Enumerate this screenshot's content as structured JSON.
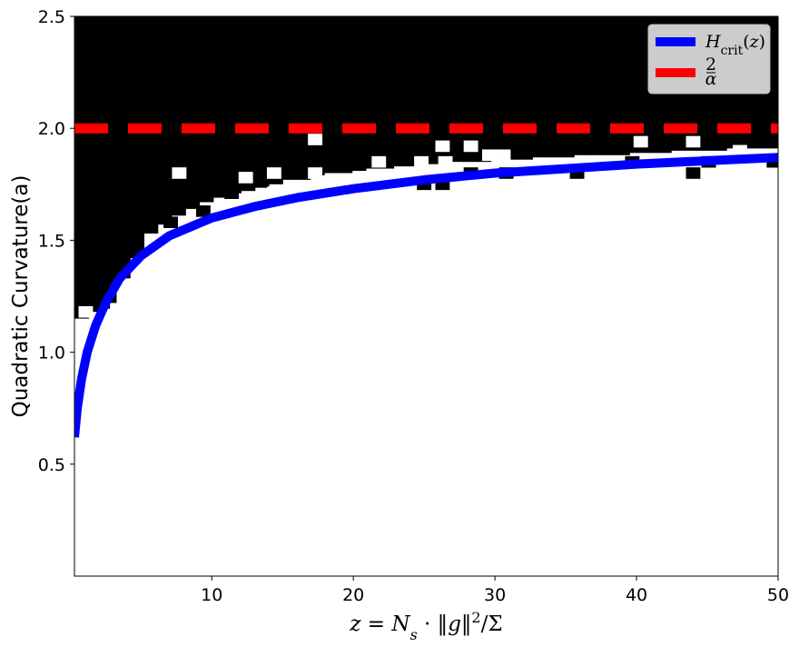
{
  "chart_data": {
    "type": "heatmap",
    "title": "",
    "xlabel": "z = N_s · ‖g‖²/Σ",
    "ylabel": "Quadratic Curvature(a)",
    "xlim": [
      0.3,
      50
    ],
    "ylim": [
      0,
      2.5
    ],
    "x_ticks": [
      10,
      20,
      30,
      40,
      50
    ],
    "x_tick_labels": [
      "10",
      "20",
      "30",
      "40",
      "50"
    ],
    "y_ticks": [
      0.5,
      1.0,
      1.5,
      2.0,
      2.5
    ],
    "y_tick_labels": [
      "0.5",
      "1.0",
      "1.5",
      "2.0",
      "2.5"
    ],
    "heatmap": {
      "description_of_values": "black = 1 (above boundary), white = 0 (below boundary)",
      "x_bin_width": 0.98,
      "y_bin_width": 0.0488,
      "boundary_per_x_bin": [
        1.15,
        1.18,
        1.22,
        1.33,
        1.42,
        1.53,
        1.57,
        1.61,
        1.64,
        1.67,
        1.69,
        1.71,
        1.72,
        1.74,
        1.75,
        1.77,
        1.77,
        1.79,
        1.8,
        1.8,
        1.81,
        1.82,
        1.82,
        1.83,
        1.83,
        1.84,
        1.84,
        1.85,
        1.85,
        1.85,
        1.86,
        1.86,
        1.86,
        1.87,
        1.87,
        1.87,
        1.88,
        1.88,
        1.88,
        1.88,
        1.89,
        1.89,
        1.89,
        1.9,
        1.9,
        1.9,
        1.9,
        1.91,
        1.91,
        1.91,
        1.91
      ],
      "black_outliers": [
        [
          7.1,
          1.58
        ],
        [
          9.4,
          1.63
        ],
        [
          11.4,
          1.71
        ],
        [
          13.4,
          1.76
        ],
        [
          3.2,
          1.38
        ],
        [
          2.3,
          1.22
        ],
        [
          25,
          1.75
        ],
        [
          26.3,
          1.75
        ],
        [
          28.3,
          1.8
        ],
        [
          30.8,
          1.8
        ],
        [
          35.8,
          1.8
        ],
        [
          39.7,
          1.85
        ],
        [
          44,
          1.8
        ],
        [
          45.1,
          1.85
        ],
        [
          49.7,
          1.85
        ]
      ],
      "white_outliers": [
        [
          17.3,
          1.95
        ],
        [
          26.3,
          1.92
        ],
        [
          28.3,
          1.92
        ],
        [
          40.3,
          1.94
        ],
        [
          44,
          1.94
        ],
        [
          47.3,
          1.9
        ],
        [
          7.7,
          1.8
        ],
        [
          12.4,
          1.78
        ],
        [
          14.4,
          1.8
        ],
        [
          17.3,
          1.8
        ],
        [
          21.8,
          1.85
        ],
        [
          24.8,
          1.85
        ],
        [
          26.5,
          1.85
        ],
        [
          29.6,
          1.88
        ],
        [
          30.6,
          1.88
        ],
        [
          1.1,
          1.18
        ]
      ]
    },
    "series": [
      {
        "name": "H_crit(z)",
        "color": "#0000ff",
        "style": "solid",
        "x": [
          0.3,
          0.5,
          0.8,
          1.2,
          1.8,
          2.5,
          3.5,
          5,
          7,
          10,
          13,
          16,
          20,
          25,
          30,
          35,
          40,
          45,
          50
        ],
        "y": [
          0.62,
          0.75,
          0.88,
          1.0,
          1.12,
          1.22,
          1.33,
          1.43,
          1.52,
          1.6,
          1.65,
          1.69,
          1.73,
          1.77,
          1.8,
          1.82,
          1.84,
          1.855,
          1.87
        ]
      },
      {
        "name": "2/α",
        "color": "#ff0000",
        "style": "dashed",
        "x": [
          0.3,
          50
        ],
        "y": [
          2.0,
          2.0
        ]
      }
    ],
    "legend": {
      "location": "top-right",
      "entries": [
        {
          "label": "H_crit(z)",
          "color": "#0000ff",
          "style": "solid"
        },
        {
          "label": "2/α",
          "color": "#ff0000",
          "style": "dashed"
        }
      ]
    }
  }
}
